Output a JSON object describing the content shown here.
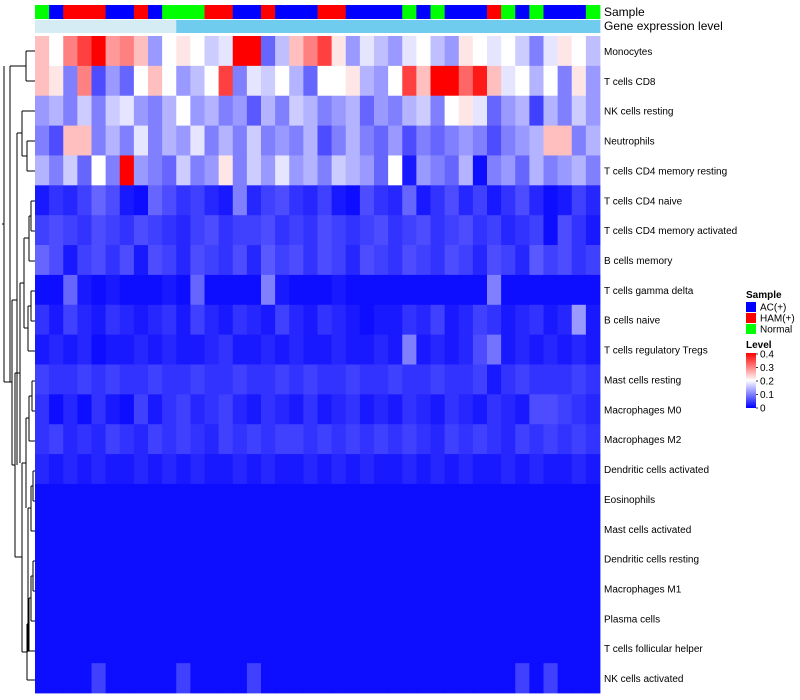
{
  "chart_data": {
    "type": "heatmap",
    "annotation_titles": {
      "sample": "Sample",
      "gene_expression": "Gene expression level"
    },
    "rows": [
      "Monocytes",
      "T cells CD8",
      "NK cells resting",
      "Neutrophils",
      "T cells CD4 memory resting",
      "T cells CD4 naive",
      "T cells CD4 memory activated",
      "B cells memory",
      "T cells gamma delta",
      "B cells naive",
      "T cells regulatory  Tregs",
      "Mast cells resting",
      "Macrophages M0",
      "Macrophages M2",
      "Dendritic cells activated",
      "Eosinophils",
      "Mast cells activated",
      "Dendritic cells resting",
      "Macrophages M1",
      "Plasma cells",
      "T cells follicular helper",
      "NK cells activated"
    ],
    "column_samples": [
      "Normal",
      "AC(+)",
      "HAM(+)",
      "HAM(+)",
      "HAM(+)",
      "AC(+)",
      "AC(+)",
      "HAM(+)",
      "AC(+)",
      "Normal",
      "Normal",
      "Normal",
      "HAM(+)",
      "HAM(+)",
      "AC(+)",
      "AC(+)",
      "HAM(+)",
      "AC(+)",
      "AC(+)",
      "AC(+)",
      "HAM(+)",
      "HAM(+)",
      "AC(+)",
      "AC(+)",
      "AC(+)",
      "AC(+)",
      "Normal",
      "AC(+)",
      "Normal",
      "AC(+)",
      "AC(+)",
      "AC(+)",
      "HAM(+)",
      "Normal",
      "AC(+)",
      "Normal",
      "AC(+)",
      "AC(+)",
      "AC(+)",
      "Normal"
    ],
    "gene_expression_bar": [
      "low",
      "low",
      "low",
      "low",
      "low",
      "low",
      "low",
      "low",
      "low",
      "low",
      "high",
      "high",
      "high",
      "high",
      "high",
      "high",
      "high",
      "high",
      "high",
      "high",
      "high",
      "high",
      "high",
      "high",
      "high",
      "high",
      "high",
      "high",
      "high",
      "high",
      "high",
      "high",
      "high",
      "high",
      "high",
      "high",
      "high",
      "high",
      "high",
      "high"
    ],
    "values": [
      [
        0.25,
        0.2,
        0.3,
        0.35,
        0.4,
        0.28,
        0.3,
        0.25,
        0.12,
        0.2,
        0.22,
        0.2,
        0.16,
        0.18,
        0.4,
        0.4,
        0.08,
        0.15,
        0.25,
        0.3,
        0.35,
        0.22,
        0.12,
        0.18,
        0.15,
        0.12,
        0.18,
        0.2,
        0.15,
        0.12,
        0.22,
        0.2,
        0.18,
        0.2,
        0.16,
        0.1,
        0.18,
        0.22,
        0.2,
        0.15
      ],
      [
        0.25,
        0.22,
        0.1,
        0.3,
        0.06,
        0.12,
        0.08,
        0.2,
        0.25,
        0.2,
        0.12,
        0.15,
        0.2,
        0.35,
        0.1,
        0.18,
        0.16,
        0.2,
        0.14,
        0.08,
        0.2,
        0.2,
        0.22,
        0.14,
        0.12,
        0.2,
        0.35,
        0.25,
        0.4,
        0.4,
        0.32,
        0.38,
        0.25,
        0.18,
        0.2,
        0.14,
        0.2,
        0.1,
        0.22,
        0.12
      ],
      [
        0.12,
        0.14,
        0.1,
        0.16,
        0.1,
        0.16,
        0.18,
        0.12,
        0.1,
        0.14,
        0.2,
        0.12,
        0.14,
        0.1,
        0.12,
        0.07,
        0.14,
        0.1,
        0.16,
        0.14,
        0.1,
        0.12,
        0.14,
        0.08,
        0.12,
        0.1,
        0.14,
        0.16,
        0.1,
        0.2,
        0.22,
        0.18,
        0.08,
        0.12,
        0.14,
        0.05,
        0.14,
        0.1,
        0.16,
        0.12
      ],
      [
        0.1,
        0.06,
        0.25,
        0.25,
        0.1,
        0.14,
        0.1,
        0.18,
        0.1,
        0.14,
        0.12,
        0.18,
        0.1,
        0.14,
        0.1,
        0.16,
        0.1,
        0.12,
        0.1,
        0.14,
        0.06,
        0.1,
        0.14,
        0.1,
        0.08,
        0.12,
        0.06,
        0.1,
        0.08,
        0.1,
        0.12,
        0.1,
        0.06,
        0.1,
        0.12,
        0.14,
        0.25,
        0.25,
        0.1,
        0.14
      ],
      [
        0.14,
        0.1,
        0.16,
        0.08,
        0.2,
        0.1,
        0.4,
        0.12,
        0.1,
        0.08,
        0.16,
        0.1,
        0.12,
        0.22,
        0.1,
        0.16,
        0.12,
        0.18,
        0.12,
        0.14,
        0.1,
        0.16,
        0.14,
        0.12,
        0.08,
        0.2,
        0.02,
        0.12,
        0.1,
        0.08,
        0.14,
        0.01,
        0.1,
        0.12,
        0.08,
        0.14,
        0.1,
        0.12,
        0.14,
        0.1
      ],
      [
        0.02,
        0.04,
        0.03,
        0.05,
        0.08,
        0.06,
        0.02,
        0.01,
        0.08,
        0.06,
        0.04,
        0.05,
        0.03,
        0.02,
        0.1,
        0.03,
        0.05,
        0.06,
        0.04,
        0.03,
        0.05,
        0.02,
        0.01,
        0.06,
        0.04,
        0.03,
        0.08,
        0.02,
        0.04,
        0.06,
        0.03,
        0.05,
        0.02,
        0.04,
        0.06,
        0.03,
        0.01,
        0.02,
        0.05,
        0.03
      ],
      [
        0.05,
        0.06,
        0.05,
        0.04,
        0.06,
        0.05,
        0.04,
        0.06,
        0.05,
        0.04,
        0.03,
        0.05,
        0.06,
        0.04,
        0.05,
        0.05,
        0.06,
        0.04,
        0.05,
        0.04,
        0.06,
        0.05,
        0.04,
        0.05,
        0.06,
        0.04,
        0.05,
        0.06,
        0.04,
        0.05,
        0.06,
        0.04,
        0.05,
        0.03,
        0.04,
        0.05,
        0.01,
        0.06,
        0.04,
        0.02
      ],
      [
        0.08,
        0.06,
        0.02,
        0.05,
        0.06,
        0.04,
        0.06,
        0.02,
        0.06,
        0.05,
        0.03,
        0.06,
        0.05,
        0.04,
        0.06,
        0.03,
        0.07,
        0.05,
        0.06,
        0.04,
        0.06,
        0.05,
        0.03,
        0.06,
        0.05,
        0.04,
        0.06,
        0.05,
        0.04,
        0.06,
        0.05,
        0.03,
        0.06,
        0.05,
        0.03,
        0.07,
        0.05,
        0.06,
        0.04,
        0.05
      ],
      [
        0.01,
        0.01,
        0.08,
        0.02,
        0.01,
        0.02,
        0.01,
        0.01,
        0.01,
        0.02,
        0.01,
        0.08,
        0.01,
        0.01,
        0.01,
        0.01,
        0.1,
        0.02,
        0.01,
        0.01,
        0.01,
        0.02,
        0.01,
        0.01,
        0.01,
        0.01,
        0.01,
        0.01,
        0.01,
        0.01,
        0.01,
        0.01,
        0.1,
        0.01,
        0.01,
        0.01,
        0.01,
        0.01,
        0.01,
        0.01
      ],
      [
        0.04,
        0.02,
        0.05,
        0.03,
        0.02,
        0.04,
        0.03,
        0.02,
        0.03,
        0.04,
        0.02,
        0.05,
        0.03,
        0.02,
        0.04,
        0.03,
        0.02,
        0.05,
        0.03,
        0.02,
        0.04,
        0.03,
        0.02,
        0.01,
        0.02,
        0.02,
        0.04,
        0.03,
        0.05,
        0.02,
        0.03,
        0.05,
        0.04,
        0.02,
        0.03,
        0.04,
        0.02,
        0.03,
        0.12,
        0.02
      ],
      [
        0.02,
        0.03,
        0.02,
        0.03,
        0.01,
        0.02,
        0.02,
        0.03,
        0.02,
        0.03,
        0.02,
        0.02,
        0.03,
        0.04,
        0.02,
        0.02,
        0.03,
        0.02,
        0.03,
        0.02,
        0.02,
        0.03,
        0.02,
        0.02,
        0.03,
        0.02,
        0.1,
        0.02,
        0.03,
        0.02,
        0.03,
        0.06,
        0.09,
        0.02,
        0.03,
        0.02,
        0.03,
        0.02,
        0.03,
        0.02
      ],
      [
        0.05,
        0.04,
        0.04,
        0.05,
        0.04,
        0.05,
        0.04,
        0.04,
        0.05,
        0.04,
        0.04,
        0.05,
        0.04,
        0.04,
        0.05,
        0.04,
        0.04,
        0.05,
        0.04,
        0.05,
        0.04,
        0.04,
        0.05,
        0.04,
        0.04,
        0.05,
        0.04,
        0.04,
        0.05,
        0.04,
        0.04,
        0.05,
        0.02,
        0.04,
        0.05,
        0.04,
        0.04,
        0.04,
        0.05,
        0.04
      ],
      [
        0.04,
        0.01,
        0.03,
        0.01,
        0.04,
        0.02,
        0.01,
        0.05,
        0.02,
        0.04,
        0.05,
        0.03,
        0.04,
        0.05,
        0.03,
        0.02,
        0.04,
        0.03,
        0.02,
        0.04,
        0.02,
        0.03,
        0.04,
        0.02,
        0.03,
        0.02,
        0.04,
        0.03,
        0.02,
        0.04,
        0.03,
        0.02,
        0.04,
        0.03,
        0.02,
        0.06,
        0.06,
        0.05,
        0.04,
        0.03
      ],
      [
        0.04,
        0.05,
        0.03,
        0.04,
        0.03,
        0.05,
        0.04,
        0.03,
        0.05,
        0.04,
        0.05,
        0.04,
        0.03,
        0.05,
        0.04,
        0.05,
        0.04,
        0.05,
        0.05,
        0.04,
        0.05,
        0.04,
        0.05,
        0.04,
        0.05,
        0.04,
        0.05,
        0.04,
        0.03,
        0.05,
        0.04,
        0.05,
        0.04,
        0.03,
        0.05,
        0.04,
        0.05,
        0.04,
        0.05,
        0.04
      ],
      [
        0.03,
        0.02,
        0.03,
        0.02,
        0.03,
        0.02,
        0.02,
        0.03,
        0.02,
        0.03,
        0.02,
        0.03,
        0.02,
        0.02,
        0.03,
        0.02,
        0.03,
        0.02,
        0.02,
        0.03,
        0.02,
        0.03,
        0.02,
        0.03,
        0.02,
        0.02,
        0.03,
        0.02,
        0.03,
        0.02,
        0.03,
        0.02,
        0.02,
        0.03,
        0.02,
        0.03,
        0.02,
        0.02,
        0.03,
        0.02
      ],
      [
        0.01,
        0.01,
        0.01,
        0.01,
        0.01,
        0.01,
        0.01,
        0.01,
        0.01,
        0.01,
        0.01,
        0.01,
        0.01,
        0.01,
        0.01,
        0.01,
        0.01,
        0.01,
        0.01,
        0.01,
        0.01,
        0.01,
        0.01,
        0.01,
        0.01,
        0.01,
        0.01,
        0.01,
        0.01,
        0.01,
        0.01,
        0.01,
        0.01,
        0.01,
        0.01,
        0.01,
        0.01,
        0.01,
        0.01,
        0.01
      ],
      [
        0.01,
        0.01,
        0.01,
        0.01,
        0.01,
        0.01,
        0.01,
        0.01,
        0.01,
        0.01,
        0.01,
        0.01,
        0.01,
        0.01,
        0.01,
        0.01,
        0.01,
        0.01,
        0.01,
        0.01,
        0.01,
        0.01,
        0.01,
        0.01,
        0.01,
        0.01,
        0.01,
        0.01,
        0.01,
        0.01,
        0.01,
        0.01,
        0.01,
        0.01,
        0.01,
        0.01,
        0.01,
        0.01,
        0.01,
        0.01
      ],
      [
        0.01,
        0.01,
        0.01,
        0.01,
        0.01,
        0.01,
        0.01,
        0.01,
        0.01,
        0.01,
        0.01,
        0.01,
        0.01,
        0.01,
        0.01,
        0.01,
        0.01,
        0.01,
        0.01,
        0.01,
        0.01,
        0.01,
        0.01,
        0.01,
        0.01,
        0.01,
        0.01,
        0.01,
        0.01,
        0.01,
        0.01,
        0.01,
        0.01,
        0.01,
        0.01,
        0.01,
        0.01,
        0.01,
        0.01,
        0.01
      ],
      [
        0.01,
        0.01,
        0.01,
        0.01,
        0.01,
        0.01,
        0.01,
        0.01,
        0.01,
        0.01,
        0.01,
        0.01,
        0.01,
        0.01,
        0.01,
        0.01,
        0.01,
        0.01,
        0.01,
        0.01,
        0.01,
        0.01,
        0.01,
        0.01,
        0.01,
        0.01,
        0.01,
        0.01,
        0.01,
        0.01,
        0.01,
        0.01,
        0.01,
        0.01,
        0.01,
        0.01,
        0.01,
        0.01,
        0.01,
        0.01
      ],
      [
        0.01,
        0.01,
        0.01,
        0.01,
        0.01,
        0.01,
        0.01,
        0.01,
        0.01,
        0.01,
        0.01,
        0.01,
        0.01,
        0.01,
        0.01,
        0.01,
        0.01,
        0.01,
        0.01,
        0.01,
        0.01,
        0.01,
        0.01,
        0.01,
        0.01,
        0.01,
        0.01,
        0.01,
        0.01,
        0.01,
        0.01,
        0.01,
        0.01,
        0.01,
        0.01,
        0.01,
        0.01,
        0.01,
        0.01,
        0.01
      ],
      [
        0.01,
        0.01,
        0.01,
        0.01,
        0.01,
        0.01,
        0.01,
        0.01,
        0.01,
        0.01,
        0.01,
        0.01,
        0.01,
        0.01,
        0.01,
        0.01,
        0.01,
        0.01,
        0.01,
        0.01,
        0.01,
        0.01,
        0.01,
        0.01,
        0.01,
        0.01,
        0.01,
        0.01,
        0.01,
        0.01,
        0.01,
        0.01,
        0.01,
        0.01,
        0.01,
        0.01,
        0.01,
        0.01,
        0.01,
        0.01
      ],
      [
        0.01,
        0.01,
        0.01,
        0.01,
        0.05,
        0.01,
        0.01,
        0.01,
        0.01,
        0.01,
        0.05,
        0.01,
        0.01,
        0.01,
        0.01,
        0.05,
        0.01,
        0.01,
        0.01,
        0.01,
        0.01,
        0.01,
        0.01,
        0.01,
        0.01,
        0.01,
        0.01,
        0.01,
        0.01,
        0.01,
        0.01,
        0.01,
        0.01,
        0.01,
        0.05,
        0.01,
        0.05,
        0.01,
        0.01,
        0.01
      ]
    ],
    "color_scale": {
      "low": "#0000FF",
      "mid": "#FFFFFF",
      "high": "#FF0000",
      "min": 0,
      "max": 0.4
    },
    "legends": {
      "sample": {
        "title": "Sample",
        "items": [
          {
            "label": "AC(+)",
            "color": "#0000FF"
          },
          {
            "label": "HAM(+)",
            "color": "#FF0000"
          },
          {
            "label": "Normal",
            "color": "#00FF00"
          }
        ]
      },
      "level": {
        "title": "Level",
        "ticks": [
          "0.4",
          "0.3",
          "0.2",
          "0.1",
          "0"
        ]
      }
    },
    "gene_expression_colors": {
      "low": "#D6ECF5",
      "high": "#70CCEE"
    }
  }
}
